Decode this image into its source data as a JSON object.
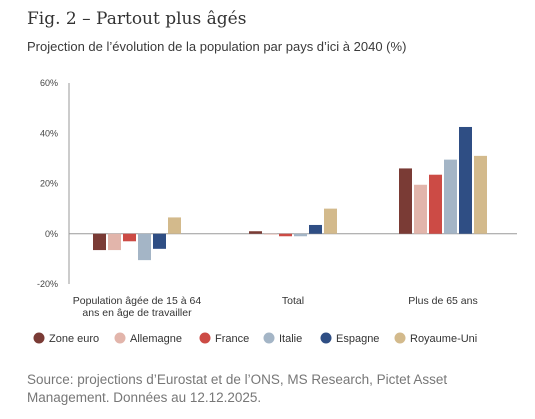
{
  "figure": {
    "title": "Fig. 2 – Partout plus âgés",
    "subtitle": "Projection de l’évolution de la population par pays d’ici à 2040 (%)",
    "source": "Source: projections d’Eurostat et de l’ONS, MS Research, Pictet Asset Management. Données au 12.12.2025."
  },
  "chart_data": {
    "type": "bar",
    "title": "Projection de l’évolution de la population par pays d’ici à 2040 (%)",
    "categories": [
      [
        "Population âgée de 15 à 64",
        "ans en âge de travailler"
      ],
      [
        "Total"
      ],
      [
        "Plus de 65 ans"
      ]
    ],
    "ylim": [
      -20,
      60
    ],
    "yticks": [
      -20,
      0,
      20,
      40,
      60
    ],
    "ytick_labels": [
      "-20%",
      "0%",
      "20%",
      "40%",
      "60%"
    ],
    "grid": false,
    "legend_position": "bottom",
    "series": [
      {
        "name": "Zone euro",
        "color": "#7a3b35",
        "values": [
          -6.5,
          1,
          26
        ]
      },
      {
        "name": "Allemagne",
        "color": "#e2b5ab",
        "values": [
          -6.5,
          -0.3,
          19.5
        ]
      },
      {
        "name": "France",
        "color": "#cc4b45",
        "values": [
          -3,
          -1,
          23.5
        ]
      },
      {
        "name": "Italie",
        "color": "#a4b5c6",
        "values": [
          -10.5,
          -1,
          29.5
        ]
      },
      {
        "name": "Espagne",
        "color": "#2f4e84",
        "values": [
          -6,
          3.5,
          42.5
        ]
      },
      {
        "name": "Royaume-Uni",
        "color": "#d3ba8c",
        "values": [
          6.5,
          10,
          31
        ]
      }
    ]
  }
}
